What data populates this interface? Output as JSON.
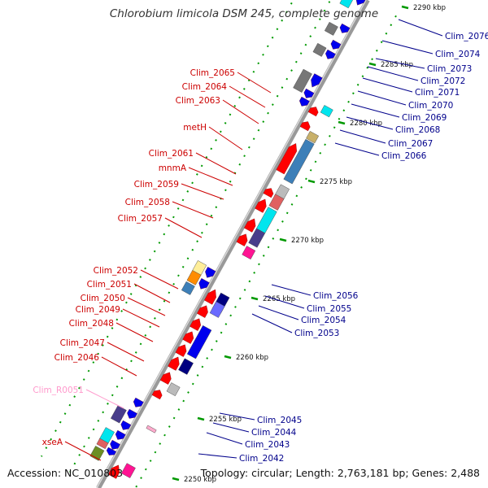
{
  "title": "Chlorobium limicola DSM 245, complete genome",
  "footer": {
    "accession": "Accession: NC_010803",
    "summary": "Topology: circular; Length: 2,763,181 bp; Genes: 2,488"
  },
  "colors": {
    "background": "#ffffff",
    "backbone": "#999999",
    "forward_cds": "#ff0000",
    "reverse_cds": "#0000ee",
    "forward_label": "#cc0000",
    "reverse_label": "#00008b",
    "rna_label": "#ff99cc",
    "tick": "#009900"
  },
  "ticks": [
    {
      "label": "2290 kbp"
    },
    {
      "label": "2285 kbp"
    },
    {
      "label": "2280 kbp"
    },
    {
      "label": "2275 kbp"
    },
    {
      "label": "2270 kbp"
    },
    {
      "label": "2265 kbp"
    },
    {
      "label": "2260 kbp"
    },
    {
      "label": "2255 kbp"
    },
    {
      "label": "2250 kbp"
    }
  ],
  "forward_labels": [
    {
      "name": "Clim_2065"
    },
    {
      "name": "Clim_2064"
    },
    {
      "name": "Clim_2063"
    },
    {
      "name": "metH"
    },
    {
      "name": "Clim_2061"
    },
    {
      "name": "mnmA"
    },
    {
      "name": "Clim_2059"
    },
    {
      "name": "Clim_2058"
    },
    {
      "name": "Clim_2057"
    },
    {
      "name": "Clim_2052"
    },
    {
      "name": "Clim_2051"
    },
    {
      "name": "Clim_2050"
    },
    {
      "name": "Clim_2049"
    },
    {
      "name": "Clim_2048"
    },
    {
      "name": "Clim_2047"
    },
    {
      "name": "Clim_2046"
    },
    {
      "name": "Clim_R0051"
    },
    {
      "name": "xseA"
    }
  ],
  "reverse_labels": [
    {
      "name": "Clim_2076"
    },
    {
      "name": "Clim_2074"
    },
    {
      "name": "Clim_2073"
    },
    {
      "name": "Clim_2072"
    },
    {
      "name": "Clim_2071"
    },
    {
      "name": "Clim_2070"
    },
    {
      "name": "Clim_2069"
    },
    {
      "name": "Clim_2068"
    },
    {
      "name": "Clim_2067"
    },
    {
      "name": "Clim_2066"
    },
    {
      "name": "Clim_2056"
    },
    {
      "name": "Clim_2055"
    },
    {
      "name": "Clim_2054"
    },
    {
      "name": "Clim_2053"
    },
    {
      "name": "Clim_2045"
    },
    {
      "name": "Clim_2044"
    },
    {
      "name": "Clim_2043"
    },
    {
      "name": "Clim_2042"
    }
  ]
}
